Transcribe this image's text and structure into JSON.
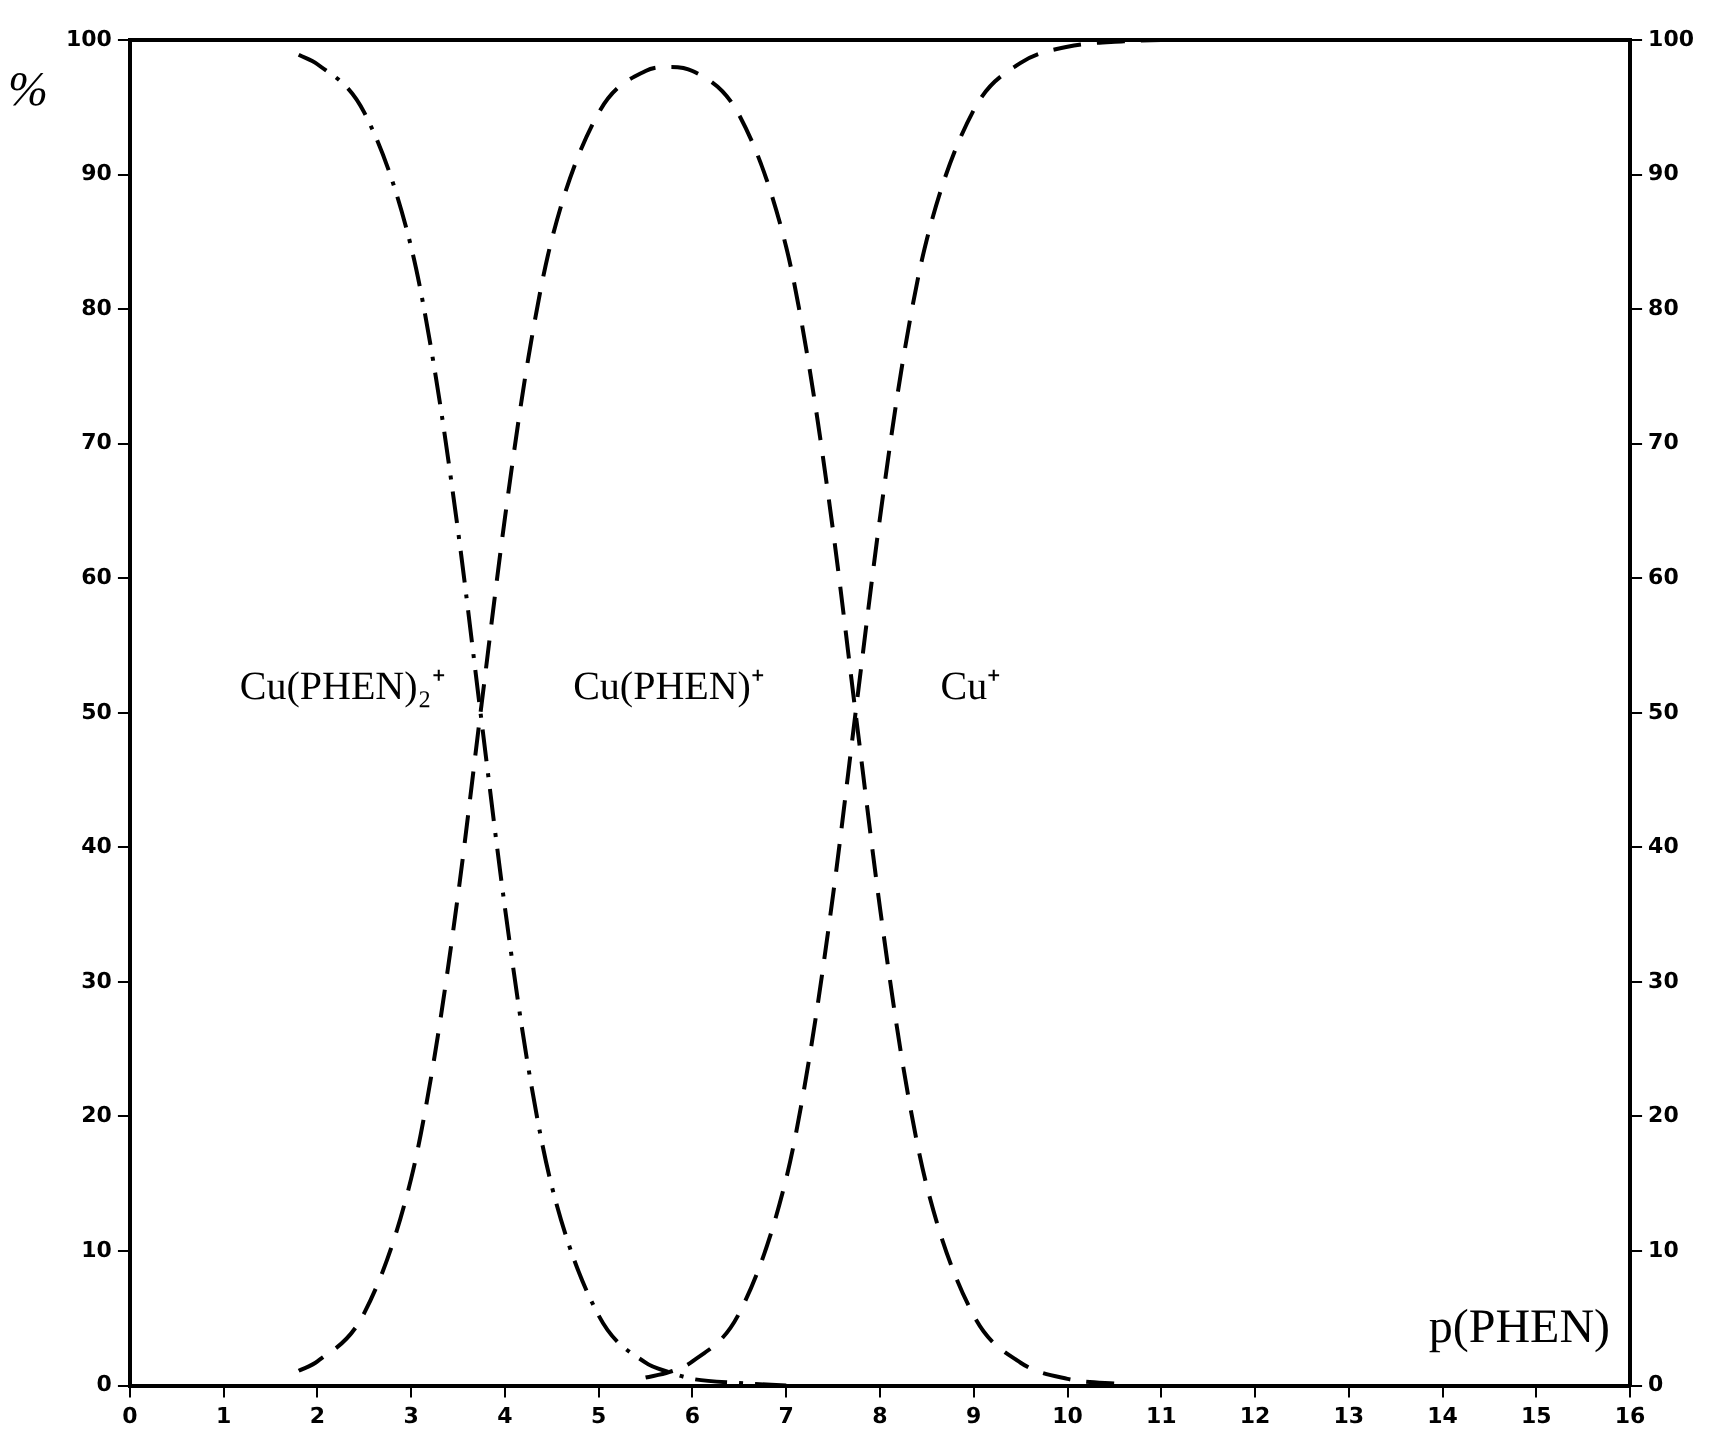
{
  "chart_data": {
    "type": "line",
    "xlabel": "p(PHEN)",
    "ylabel": "%",
    "xlim": [
      0,
      16
    ],
    "xticks": [
      0,
      1,
      2,
      3,
      4,
      5,
      6,
      7,
      8,
      9,
      10,
      11,
      12,
      13,
      14,
      15,
      16
    ],
    "ylim": [
      0,
      100
    ],
    "yticks": [
      0,
      10,
      20,
      30,
      40,
      50,
      60,
      70,
      80,
      90,
      100
    ],
    "y2lim": [
      0,
      100
    ],
    "y2ticks": [
      0,
      10,
      20,
      30,
      40,
      50,
      60,
      70,
      80,
      90,
      100
    ],
    "grid": false,
    "legend": false,
    "marker": "none",
    "series": [
      {
        "name": "Cu(PHEN)₂⁺",
        "color": "#000000",
        "line_style": "dashdot",
        "x": [
          1.8,
          2,
          2.5,
          3,
          3.25,
          3.5,
          3.75,
          4,
          4.25,
          4.5,
          5,
          5.5,
          5.75,
          6,
          6.5,
          7
        ],
        "values": [
          98.9,
          98.2,
          94.6,
          84.6,
          75.5,
          63.5,
          49.4,
          35.5,
          23.6,
          14.8,
          5.2,
          1.7,
          1.0,
          0.5,
          0.2,
          0.0
        ]
      },
      {
        "name": "Cu(PHEN)⁺",
        "color": "#000000",
        "line_style": "dashed",
        "x": [
          1.8,
          2,
          2.5,
          3,
          3.25,
          3.5,
          3.75,
          4,
          4.25,
          4.5,
          5,
          5.5,
          5.75,
          6,
          6.5,
          7,
          7.25,
          7.5,
          7.75,
          8,
          8.25,
          8.5,
          9,
          9.5,
          10,
          10.6
        ],
        "values": [
          1.1,
          1.8,
          5.4,
          15.4,
          24.5,
          36.5,
          50.6,
          64.5,
          76.4,
          85.2,
          94.6,
          97.7,
          98.0,
          97.7,
          94.4,
          84.6,
          75.5,
          63.5,
          49.4,
          35.5,
          23.6,
          14.8,
          5.2,
          1.7,
          0.5,
          0.1
        ]
      },
      {
        "name": "Cu⁺",
        "color": "#000000",
        "line_style": "dashed",
        "x": [
          5.5,
          5.75,
          6,
          6.5,
          7,
          7.25,
          7.5,
          7.75,
          8,
          8.25,
          8.5,
          9,
          9.5,
          10,
          10.6,
          11,
          12,
          13,
          14,
          15,
          16
        ],
        "values": [
          0.6,
          1.0,
          1.8,
          5.4,
          15.4,
          24.5,
          36.5,
          50.6,
          64.5,
          76.4,
          85.2,
          94.8,
          98.3,
          99.5,
          99.9,
          100,
          100,
          100,
          100,
          100,
          100
        ]
      }
    ]
  }
}
